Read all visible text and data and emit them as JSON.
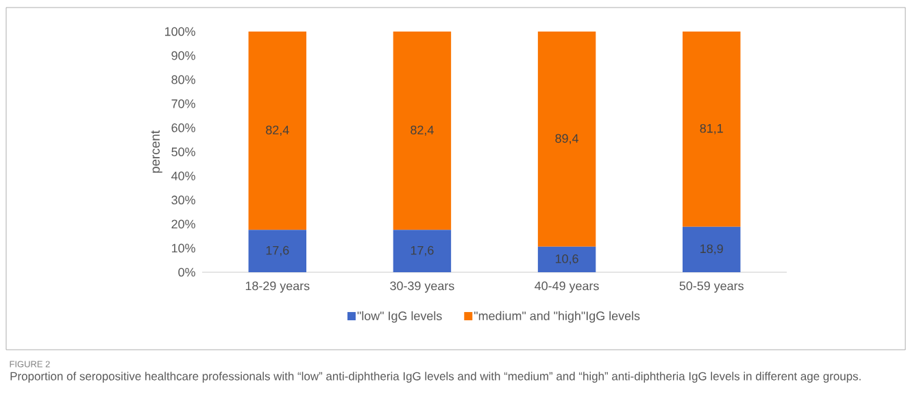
{
  "chart_data": {
    "type": "bar",
    "stacked": true,
    "ylabel": "percent",
    "categories": [
      "18-29 years",
      "30-39 years",
      "40-49 years",
      "50-59 years"
    ],
    "series": [
      {
        "name": "\"low\" IgG levels",
        "color": "#4169c8",
        "values": [
          17.6,
          17.6,
          10.6,
          18.9
        ],
        "value_labels": [
          "17,6",
          "17,6",
          "10,6",
          "18,9"
        ]
      },
      {
        "name": "\"medium\" and \"high\"IgG levels",
        "color": "#fa7500",
        "values": [
          82.4,
          82.4,
          89.4,
          81.1
        ],
        "value_labels": [
          "82,4",
          "82,4",
          "89,4",
          "81,1"
        ]
      }
    ],
    "ylim": [
      0,
      100
    ],
    "yticks": [
      {
        "value": 0,
        "label": "0%"
      },
      {
        "value": 10,
        "label": "10%"
      },
      {
        "value": 20,
        "label": "20%"
      },
      {
        "value": 30,
        "label": "30%"
      },
      {
        "value": 40,
        "label": "40%"
      },
      {
        "value": 50,
        "label": "50%"
      },
      {
        "value": 60,
        "label": "60%"
      },
      {
        "value": 70,
        "label": "70%"
      },
      {
        "value": 80,
        "label": "80%"
      },
      {
        "value": 90,
        "label": "90%"
      },
      {
        "value": 100,
        "label": "100%"
      }
    ],
    "legend": "bottom",
    "annotations": [
      "FIGURE 2",
      "Proportion of seropositive healthcare professionals with “low” anti-diphtheria IgG levels and with “medium” and “high” anti-diphtheria IgG levels in different age groups."
    ]
  }
}
